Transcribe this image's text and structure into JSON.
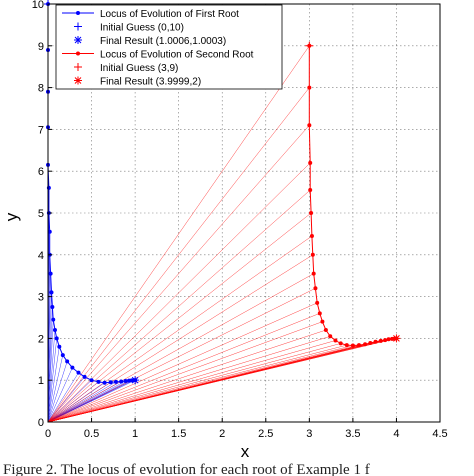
{
  "chart_data": {
    "type": "line",
    "xlabel": "x",
    "ylabel": "y",
    "xlim": [
      0,
      4.5
    ],
    "ylim": [
      0,
      10
    ],
    "xticks": [
      "0",
      "0.5",
      "1",
      "1.5",
      "2",
      "2.5",
      "3",
      "3.5",
      "4",
      "4.5"
    ],
    "yticks": [
      "0",
      "1",
      "2",
      "3",
      "4",
      "5",
      "6",
      "7",
      "8",
      "9",
      "10"
    ],
    "grid": true,
    "legend_position": "top-left",
    "legend": [
      "Locus of Evolution of First Root",
      "Initial Guess (0,10)",
      "Final Result (1.0006,1.0003)",
      "Locus of Evolution of Second Root",
      "Initial Guess (3,9)",
      "Final Result (3.9999,2)"
    ],
    "series": [
      {
        "name": "Locus of Evolution of First Root",
        "color": "#0000ff",
        "x": [
          0.0,
          0.0,
          0.0,
          0.0,
          0.0,
          0.01,
          0.01,
          0.02,
          0.02,
          0.03,
          0.04,
          0.05,
          0.06,
          0.08,
          0.1,
          0.13,
          0.17,
          0.22,
          0.28,
          0.35,
          0.42,
          0.5,
          0.58,
          0.65,
          0.72,
          0.78,
          0.84,
          0.89,
          0.93,
          0.96,
          0.98,
          1.0006
        ],
        "y": [
          10.0,
          8.9,
          7.9,
          7.05,
          6.15,
          5.6,
          5.0,
          4.55,
          4.0,
          3.55,
          3.1,
          2.75,
          2.45,
          2.2,
          2.0,
          1.8,
          1.6,
          1.45,
          1.3,
          1.18,
          1.08,
          1.0,
          0.96,
          0.94,
          0.95,
          0.96,
          0.97,
          0.98,
          0.99,
          0.995,
          1.0,
          1.0003
        ]
      },
      {
        "name": "Locus of Evolution of Second Root",
        "color": "#ff0000",
        "x": [
          3.0,
          3.0,
          3.0,
          3.01,
          3.01,
          3.02,
          3.03,
          3.04,
          3.05,
          3.07,
          3.09,
          3.12,
          3.15,
          3.19,
          3.24,
          3.3,
          3.36,
          3.43,
          3.5,
          3.57,
          3.64,
          3.7,
          3.76,
          3.82,
          3.87,
          3.91,
          3.95,
          3.98,
          3.9999
        ],
        "y": [
          9.0,
          8.0,
          7.1,
          6.2,
          5.55,
          5.0,
          4.45,
          4.0,
          3.55,
          3.2,
          2.85,
          2.6,
          2.4,
          2.2,
          2.05,
          1.95,
          1.88,
          1.84,
          1.83,
          1.84,
          1.86,
          1.89,
          1.92,
          1.94,
          1.96,
          1.98,
          1.99,
          1.995,
          2.0
        ]
      }
    ]
  },
  "caption": "Figure 2. The locus of evolution for each root of Example 1 f"
}
